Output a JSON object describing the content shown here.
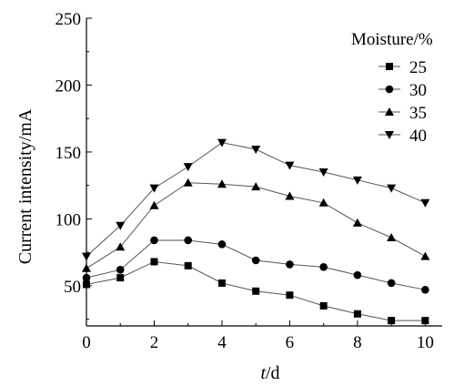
{
  "chart_data": {
    "type": "line",
    "title": "",
    "xlabel_italic": "t",
    "xlabel_unit": "/d",
    "ylabel": "Current intensity/mA",
    "xlim": [
      0,
      10.5
    ],
    "ylim": [
      20,
      250
    ],
    "xticks": [
      0,
      2,
      4,
      6,
      8,
      10
    ],
    "yticks": [
      50,
      100,
      150,
      200,
      250
    ],
    "grid": false,
    "legend_title": "Moisture/%",
    "legend_position": "top-right",
    "x": [
      0,
      1,
      2,
      3,
      4,
      5,
      6,
      7,
      8,
      9,
      10
    ],
    "series": [
      {
        "name": "25",
        "marker": "square",
        "values": [
          51,
          56,
          68,
          65,
          52,
          46,
          43,
          35,
          29,
          24,
          24
        ]
      },
      {
        "name": "30",
        "marker": "circle",
        "values": [
          56,
          62,
          84,
          84,
          81,
          69,
          66,
          64,
          58,
          52,
          47
        ]
      },
      {
        "name": "35",
        "marker": "triangle-up",
        "values": [
          63,
          79,
          110,
          127,
          126,
          124,
          117,
          112,
          97,
          86,
          72
        ]
      },
      {
        "name": "40",
        "marker": "triangle-down",
        "values": [
          72,
          95,
          123,
          139,
          157,
          152,
          140,
          135,
          129,
          123,
          112
        ]
      }
    ]
  }
}
